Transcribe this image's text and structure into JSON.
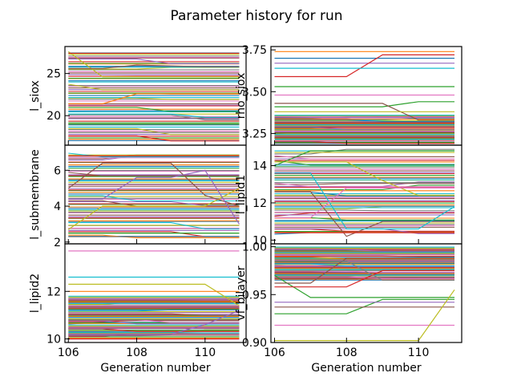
{
  "figure": {
    "title": "Parameter history for run"
  },
  "chart_data": [
    {
      "type": "line",
      "ylabel": "l_siox",
      "xlabel": "",
      "x": [
        106,
        107,
        108,
        109,
        110,
        111
      ],
      "xlim": [
        105.9,
        111.2
      ],
      "ylim": [
        16.5,
        28.2
      ],
      "yticks": [
        20,
        25
      ],
      "xticks": [
        106,
        108,
        110
      ],
      "grid": false,
      "band": {
        "min": 17.0,
        "max": 27.6,
        "seed": 11
      },
      "series": [
        {
          "values": [
            27.6,
            24.6,
            24.6,
            24.6,
            24.6,
            24.6
          ],
          "color": "#bcbd22"
        },
        {
          "values": [
            27.4,
            27.4,
            27.4,
            27.4,
            27.4,
            27.4
          ],
          "color": "#d62728"
        },
        {
          "values": [
            25.6,
            25.6,
            26.0,
            25.9,
            25.8,
            25.8
          ],
          "color": "#8c564b"
        },
        {
          "values": [
            21.4,
            21.4,
            22.6,
            22.6,
            22.6,
            22.6
          ],
          "color": "#ff7f0e"
        },
        {
          "values": [
            20.2,
            20.2,
            20.2,
            20.2,
            19.8,
            19.8
          ],
          "color": "#17becf"
        },
        {
          "values": [
            19.0,
            19.0,
            19.0,
            19.0,
            19.0,
            19.0
          ],
          "color": "#2ca02c"
        },
        {
          "values": [
            18.0,
            18.0,
            18.0,
            18.0,
            18.0,
            18.0
          ],
          "color": "#7f7f7f"
        },
        {
          "values": [
            17.6,
            17.6,
            17.6,
            17.0,
            17.0,
            17.0
          ],
          "color": "#d62728"
        }
      ]
    },
    {
      "type": "line",
      "ylabel": "rho_siox",
      "xlabel": "",
      "x": [
        106,
        107,
        108,
        109,
        110,
        111
      ],
      "xlim": [
        105.9,
        111.2
      ],
      "ylim": [
        3.18,
        3.77
      ],
      "yticks": [
        3.25,
        3.5,
        3.75
      ],
      "xticks": [
        106,
        108,
        110
      ],
      "grid": false,
      "band": {
        "min": 3.19,
        "max": 3.36,
        "seed": 23
      },
      "series": [
        {
          "values": [
            3.74,
            3.74,
            3.74,
            3.74,
            3.74,
            3.74
          ],
          "color": "#ff7f0e"
        },
        {
          "values": [
            3.7,
            3.7,
            3.7,
            3.7,
            3.7,
            3.7
          ],
          "color": "#1f77b4"
        },
        {
          "values": [
            3.67,
            3.67,
            3.67,
            3.67,
            3.67,
            3.67
          ],
          "color": "#9467bd"
        },
        {
          "values": [
            3.59,
            3.59,
            3.59,
            3.72,
            3.72,
            3.72
          ],
          "color": "#d62728"
        },
        {
          "values": [
            3.64,
            3.64,
            3.64,
            3.64,
            3.64,
            3.64
          ],
          "color": "#17becf"
        },
        {
          "values": [
            3.53,
            3.53,
            3.53,
            3.53,
            3.53,
            3.53
          ],
          "color": "#2ca02c"
        },
        {
          "values": [
            3.48,
            3.48,
            3.48,
            3.48,
            3.48,
            3.48
          ],
          "color": "#e377c2"
        },
        {
          "values": [
            3.41,
            3.41,
            3.41,
            3.41,
            3.44,
            3.44
          ],
          "color": "#2ca02c"
        },
        {
          "values": [
            3.43,
            3.43,
            3.43,
            3.43,
            3.33,
            3.33
          ],
          "color": "#8c564b"
        },
        {
          "values": [
            3.38,
            3.38,
            3.38,
            3.38,
            3.38,
            3.38
          ],
          "color": "#bcbd22"
        }
      ]
    },
    {
      "type": "line",
      "ylabel": "l_submembrane",
      "xlabel": "",
      "x": [
        106,
        107,
        108,
        109,
        110,
        111
      ],
      "xlim": [
        105.9,
        111.2
      ],
      "ylim": [
        1.9,
        7.4
      ],
      "yticks": [
        2,
        4,
        6
      ],
      "xticks": [
        106,
        108,
        110
      ],
      "grid": false,
      "band": {
        "min": 2.3,
        "max": 7.0,
        "seed": 37
      },
      "series": [
        {
          "values": [
            2.7,
            4.0,
            4.0,
            4.0,
            4.0,
            5.0
          ],
          "color": "#bcbd22"
        },
        {
          "values": [
            2.5,
            2.5,
            2.5,
            2.5,
            2.5,
            2.5
          ],
          "color": "#2ca02c"
        },
        {
          "values": [
            5.0,
            6.4,
            6.4,
            6.4,
            4.6,
            4.0
          ],
          "color": "#8c564b"
        },
        {
          "values": [
            4.4,
            4.4,
            5.6,
            5.6,
            6.0,
            3.0
          ],
          "color": "#9467bd"
        },
        {
          "values": [
            6.8,
            6.8,
            6.8,
            6.8,
            6.8,
            6.8
          ],
          "color": "#d62728"
        },
        {
          "values": [
            2.3,
            2.3,
            2.3,
            2.3,
            2.3,
            2.3
          ],
          "color": "#7f7f7f"
        }
      ]
    },
    {
      "type": "line",
      "ylabel": "l_lipid1",
      "xlabel": "",
      "x": [
        106,
        107,
        108,
        109,
        110,
        111
      ],
      "xlim": [
        105.9,
        111.2
      ],
      "ylim": [
        9.8,
        15.1
      ],
      "yticks": [
        10,
        12,
        14
      ],
      "xticks": [
        106,
        108,
        110
      ],
      "grid": false,
      "band": {
        "min": 10.3,
        "max": 14.8,
        "seed": 53
      },
      "series": [
        {
          "values": [
            14.2,
            14.2,
            14.2,
            13.2,
            12.4,
            12.4
          ],
          "color": "#bcbd22"
        },
        {
          "values": [
            14.0,
            14.8,
            14.8,
            14.8,
            14.8,
            14.8
          ],
          "color": "#2ca02c"
        },
        {
          "values": [
            12.6,
            12.6,
            10.2,
            11.0,
            11.0,
            11.0
          ],
          "color": "#8c564b"
        },
        {
          "values": [
            13.6,
            13.6,
            10.6,
            10.6,
            10.6,
            11.8
          ],
          "color": "#17becf"
        },
        {
          "values": [
            11.2,
            11.2,
            12.8,
            12.8,
            12.8,
            12.8
          ],
          "color": "#e377c2"
        },
        {
          "values": [
            10.4,
            10.4,
            10.4,
            10.4,
            10.4,
            10.4
          ],
          "color": "#d62728"
        }
      ]
    },
    {
      "type": "line",
      "ylabel": "l_lipid2",
      "xlabel": "Generation number",
      "x": [
        106,
        107,
        108,
        109,
        110,
        111
      ],
      "xlim": [
        105.9,
        111.2
      ],
      "ylim": [
        9.85,
        14.0
      ],
      "yticks": [
        10,
        12
      ],
      "xticks": [
        106,
        108,
        110
      ],
      "grid": false,
      "band": {
        "min": 10.0,
        "max": 11.8,
        "seed": 71
      },
      "series": [
        {
          "values": [
            13.7,
            13.7,
            13.7,
            13.7,
            13.7,
            13.7
          ],
          "color": "#e377c2"
        },
        {
          "values": [
            12.6,
            12.6,
            12.6,
            12.6,
            12.6,
            12.6
          ],
          "color": "#17becf"
        },
        {
          "values": [
            12.3,
            12.3,
            12.3,
            12.3,
            12.3,
            11.4
          ],
          "color": "#bcbd22"
        },
        {
          "values": [
            12.0,
            12.0,
            12.0,
            12.0,
            12.0,
            12.0
          ],
          "color": "#ff7f0e"
        },
        {
          "values": [
            10.2,
            10.2,
            10.2,
            10.2,
            10.6,
            11.2
          ],
          "color": "#9467bd"
        },
        {
          "values": [
            10.0,
            10.0,
            10.0,
            10.0,
            10.0,
            10.0
          ],
          "color": "#d62728"
        }
      ]
    },
    {
      "type": "line",
      "ylabel": "vf_bilayer",
      "xlabel": "Generation number",
      "x": [
        106,
        107,
        108,
        109,
        110,
        111
      ],
      "xlim": [
        105.9,
        111.2
      ],
      "ylim": [
        0.9,
        1.003
      ],
      "yticks": [
        0.9,
        0.95,
        1.0
      ],
      "xticks": [
        106,
        108,
        110
      ],
      "grid": false,
      "band": {
        "min": 0.965,
        "max": 1.0,
        "seed": 89
      },
      "series": [
        {
          "values": [
            0.97,
            0.947,
            0.947,
            0.947,
            0.947,
            0.947
          ],
          "color": "#2ca02c"
        },
        {
          "values": [
            0.93,
            0.93,
            0.93,
            0.945,
            0.945,
            0.945
          ],
          "color": "#2ca02c"
        },
        {
          "values": [
            0.958,
            0.958,
            0.958,
            0.975,
            0.975,
            0.975
          ],
          "color": "#d62728"
        },
        {
          "values": [
            0.962,
            0.962,
            0.988,
            0.988,
            0.988,
            0.988
          ],
          "color": "#8c564b"
        },
        {
          "values": [
            0.985,
            0.985,
            0.985,
            0.965,
            0.965,
            0.965
          ],
          "color": "#7f7f7f"
        },
        {
          "values": [
            0.942,
            0.942,
            0.942,
            0.942,
            0.942,
            0.942
          ],
          "color": "#9467bd"
        },
        {
          "values": [
            0.937,
            0.937,
            0.937,
            0.937,
            0.937,
            0.937
          ],
          "color": "#8c564b"
        },
        {
          "values": [
            0.918,
            0.918,
            0.918,
            0.918,
            0.918,
            0.918
          ],
          "color": "#e377c2"
        },
        {
          "values": [
            0.902,
            0.902,
            0.902,
            0.902,
            0.902,
            0.955
          ],
          "color": "#bcbd22"
        }
      ]
    }
  ]
}
